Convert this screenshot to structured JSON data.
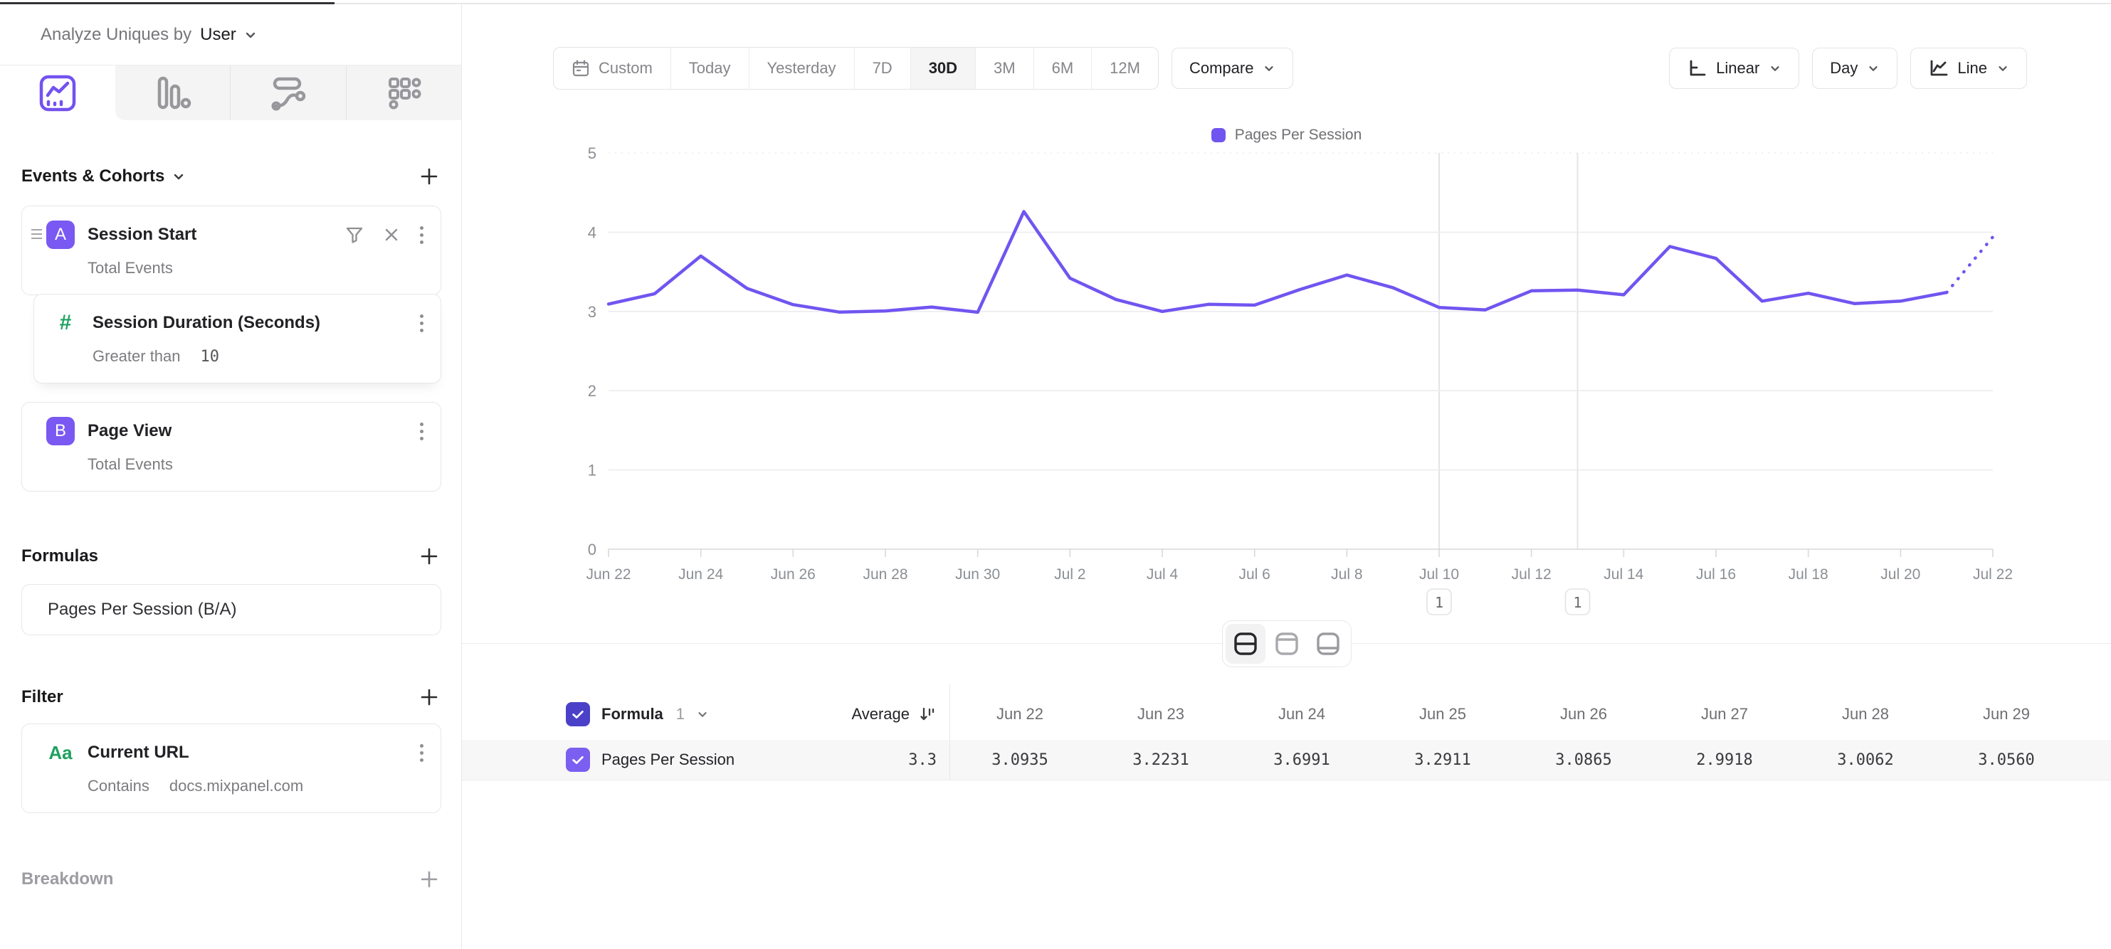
{
  "header": {
    "analyze_label": "Analyze Uniques by",
    "analyze_value": "User"
  },
  "sidebar": {
    "tabs": [
      {
        "name": "insights",
        "active": true
      },
      {
        "name": "bar-report",
        "active": false
      },
      {
        "name": "flows-report",
        "active": false
      },
      {
        "name": "retention-report",
        "active": false
      }
    ],
    "events": {
      "title": "Events & Cohorts",
      "items": [
        {
          "badge": "A",
          "title": "Session Start",
          "subtitle": "Total Events"
        },
        {
          "badge": "#",
          "title": "Session Duration (Seconds)",
          "condition": "Greater than",
          "value": "10"
        },
        {
          "badge": "B",
          "title": "Page View",
          "subtitle": "Total Events"
        }
      ]
    },
    "formulas": {
      "title": "Formulas",
      "items": [
        {
          "title": "Pages Per Session (B/A)"
        }
      ]
    },
    "filter": {
      "title": "Filter",
      "items": [
        {
          "badge": "Aa",
          "title": "Current URL",
          "condition": "Contains",
          "value": "docs.mixpanel.com"
        }
      ]
    },
    "breakdown": {
      "title": "Breakdown"
    }
  },
  "toolbar": {
    "date_ranges": [
      "Custom",
      "Today",
      "Yesterday",
      "7D",
      "30D",
      "3M",
      "6M",
      "12M"
    ],
    "active_range": "30D",
    "compare": "Compare",
    "scale": "Linear",
    "interval": "Day",
    "chart_type": "Line"
  },
  "layout_toggle": {
    "options": [
      "split-view",
      "chart-only",
      "table-only"
    ],
    "active": "split-view"
  },
  "chart_data": {
    "type": "line",
    "series_name": "Pages Per Session",
    "color": "#7155f0",
    "x": [
      "Jun 22",
      "Jun 23",
      "Jun 24",
      "Jun 25",
      "Jun 26",
      "Jun 27",
      "Jun 28",
      "Jun 29",
      "Jun 30",
      "Jul 1",
      "Jul 2",
      "Jul 3",
      "Jul 4",
      "Jul 5",
      "Jul 6",
      "Jul 7",
      "Jul 8",
      "Jul 9",
      "Jul 10",
      "Jul 11",
      "Jul 12",
      "Jul 13",
      "Jul 14",
      "Jul 15",
      "Jul 16",
      "Jul 17",
      "Jul 18",
      "Jul 19",
      "Jul 20",
      "Jul 21",
      "Jul 22"
    ],
    "values": [
      3.0935,
      3.2231,
      3.6991,
      3.2911,
      3.0865,
      2.9918,
      3.0062,
      3.056,
      2.99,
      4.26,
      3.42,
      3.15,
      3.0,
      3.09,
      3.08,
      3.28,
      3.46,
      3.3,
      3.05,
      3.02,
      3.26,
      3.27,
      3.21,
      3.82,
      3.67,
      3.13,
      3.23,
      3.1,
      3.13,
      3.24,
      3.94
    ],
    "ylim": [
      0,
      5
    ],
    "yticks": [
      0,
      1,
      2,
      3,
      4,
      5
    ],
    "x_label_every": 2,
    "grid": true,
    "legend_position": "top-center",
    "dotted_last_segment": true,
    "annotations": [
      {
        "x": "Jul 10",
        "label": "1"
      },
      {
        "x": "Jul 13",
        "label": "1"
      }
    ]
  },
  "table": {
    "formula_label": "Formula",
    "formula_number": "1",
    "average_label": "Average",
    "average_value": "3.3",
    "row_label": "Pages Per Session",
    "columns": [
      "Jun 22",
      "Jun 23",
      "Jun 24",
      "Jun 25",
      "Jun 26",
      "Jun 27",
      "Jun 28",
      "Jun 29"
    ],
    "values": [
      "3.0935",
      "3.2231",
      "3.6991",
      "3.2911",
      "3.0865",
      "2.9918",
      "3.0062",
      "3.0560"
    ]
  }
}
